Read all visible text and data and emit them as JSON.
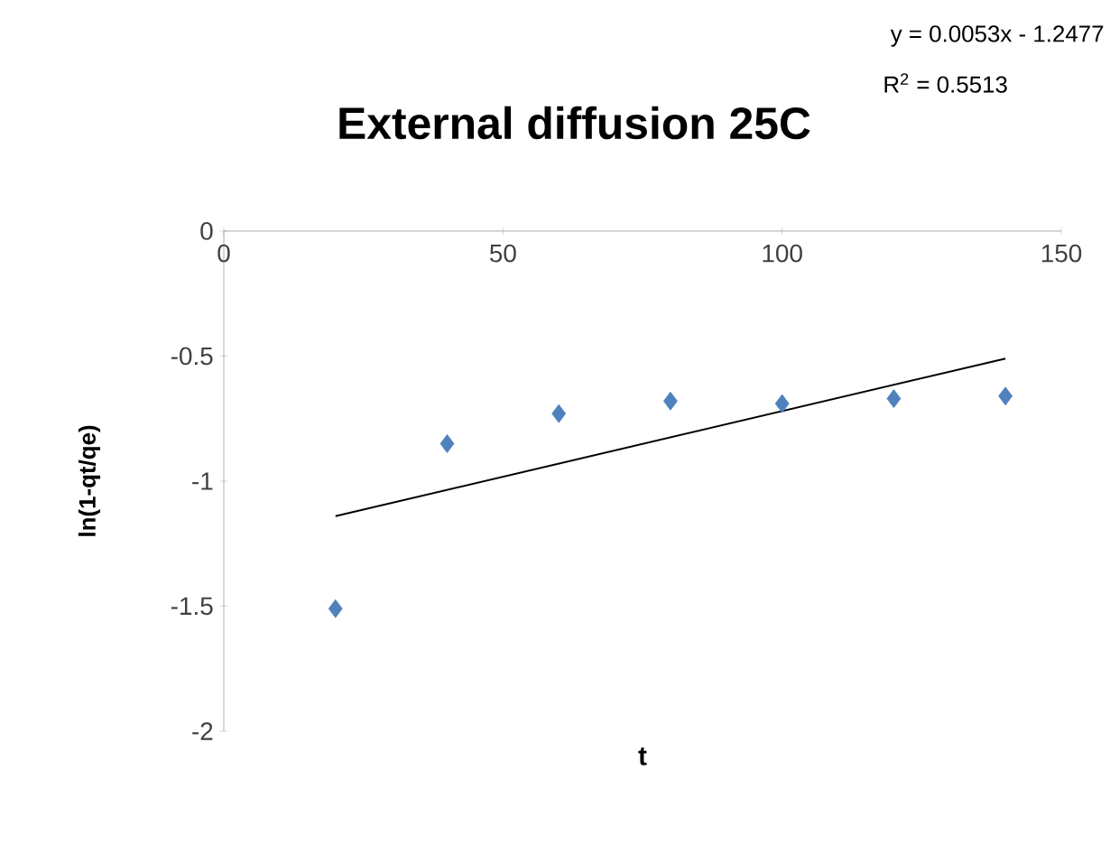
{
  "chart_data": {
    "type": "scatter",
    "title": "External diffusion 25C",
    "xlabel": "t",
    "ylabel": "ln(1-qt/qe)",
    "annotations": [
      "y = 0.0053x - 1.2477",
      "R$^{2}$ = 0.5513"
    ],
    "xlim": [
      0,
      150
    ],
    "ylim": [
      -2,
      0
    ],
    "xticks": [
      0,
      50,
      100,
      150
    ],
    "yticks": [
      0,
      -0.5,
      -1,
      -1.5,
      -2
    ],
    "marker": "diamond",
    "series": [
      {
        "color": "#4f81bd",
        "x": [
          20,
          40,
          60,
          80,
          100,
          120,
          140
        ],
        "values": [
          -1.51,
          -0.85,
          -0.73,
          -0.68,
          -0.69,
          -0.67,
          -0.66
        ]
      },
      {
        "type": "line",
        "marker": "none",
        "color": "#000000",
        "x": [
          20,
          140
        ],
        "values": [
          -1.14,
          -0.51
        ]
      }
    ]
  }
}
